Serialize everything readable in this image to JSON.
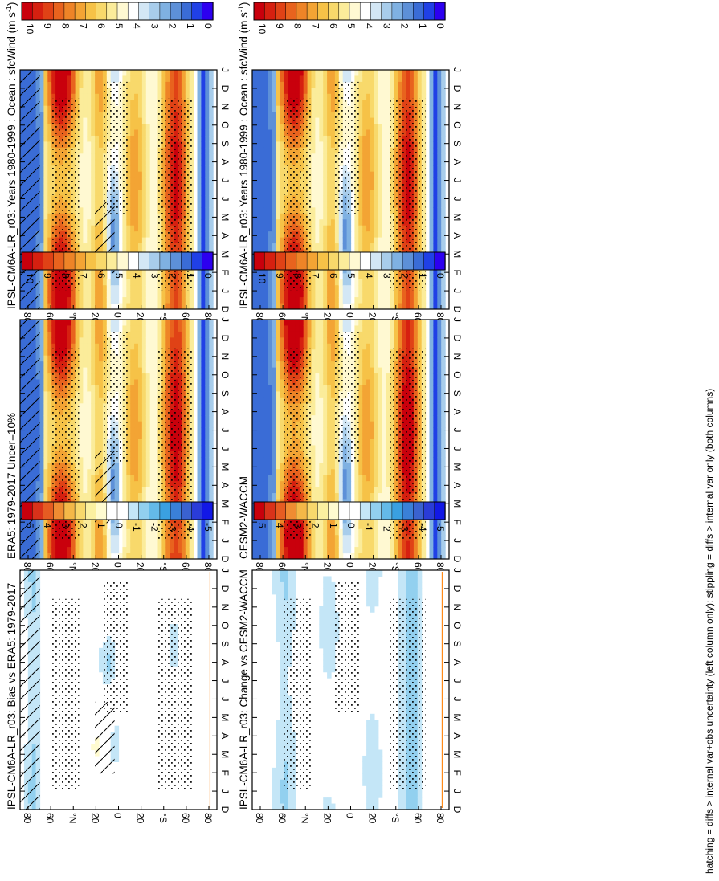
{
  "figure_caption": "hatching = diffs > internal var+obs uncertainty (left column only); stippling = diffs > internal var only (both columns)",
  "colors": {
    "abs_scale": [
      "#2d00f0",
      "#2040e6",
      "#3a6cd6",
      "#5d90d8",
      "#7fb1e2",
      "#a8cdeb",
      "#d3e7f5",
      "#ffffff",
      "#fff9d2",
      "#fbec9a",
      "#f8d96b",
      "#f6c247",
      "#f3a434",
      "#ee8427",
      "#e8631e",
      "#e04216",
      "#d62010",
      "#c9000c"
    ],
    "diff_scale": [
      "#1218e6",
      "#2a3cd8",
      "#3a62d0",
      "#3a80d8",
      "#3aa0e0",
      "#64bae8",
      "#92d0ef",
      "#c4e6f7",
      "#ffffff",
      "#ffffff",
      "#fffbd0",
      "#fbf0a0",
      "#f8d86c",
      "#f4b848",
      "#ef8c32",
      "#e65c22",
      "#d9321a",
      "#c9000c"
    ],
    "stipple": "#000000",
    "obs_line_blue": "#66b2ff",
    "obs_line_orange": "#ff8c1a"
  },
  "chart_data": [
    {
      "type": "heatmap",
      "title": "IPSL-CM6A-LR_r03: Years 1980-1999 : Ocean : sfcWind (m s",
      "title_unit_sup": "-1",
      "title_close": ")",
      "column": "left",
      "row": "top",
      "x_ticks": [
        "D",
        "J",
        "F",
        "M",
        "A",
        "M",
        "J",
        "J",
        "A",
        "S",
        "O",
        "N",
        "D",
        "J"
      ],
      "y_ticks": [
        "80",
        "60",
        "°N",
        "20",
        "0",
        "20",
        "°S",
        "60",
        "80"
      ],
      "ylim": [
        -90,
        90
      ],
      "colorbar_labels": [
        "10",
        "9",
        "8",
        "7",
        "6",
        "5",
        "4",
        "3",
        "2",
        "1",
        "0"
      ],
      "colorbar_range": [
        0,
        10
      ],
      "hatching": true,
      "stippling": true
    },
    {
      "type": "heatmap",
      "title": "IPSL-CM6A-LR_r03: Years 1980-1999 : Ocean : sfcWind (m s",
      "title_unit_sup": "-1",
      "title_close": ")",
      "column": "right",
      "row": "top",
      "x_ticks": [
        "D",
        "J",
        "F",
        "M",
        "A",
        "M",
        "J",
        "J",
        "A",
        "S",
        "O",
        "N",
        "D",
        "J"
      ],
      "y_ticks": [
        "80",
        "60",
        "°N",
        "20",
        "0",
        "20",
        "°S",
        "60",
        "80"
      ],
      "ylim": [
        -90,
        90
      ],
      "colorbar_labels": [
        "10",
        "9",
        "8",
        "7",
        "6",
        "5",
        "4",
        "3",
        "2",
        "1",
        "0"
      ],
      "colorbar_range": [
        0,
        10
      ],
      "hatching": false,
      "stippling": true
    },
    {
      "type": "heatmap",
      "title": "ERA5: 1979-2017 Uncer=10%",
      "column": "left",
      "row": "middle",
      "x_ticks": [
        "D",
        "J",
        "F",
        "M",
        "A",
        "M",
        "J",
        "J",
        "A",
        "S",
        "O",
        "N",
        "D",
        "J"
      ],
      "y_ticks": [
        "80",
        "60",
        "°N",
        "20",
        "0",
        "20",
        "°S",
        "60",
        "80"
      ],
      "ylim": [
        -90,
        90
      ],
      "colorbar_labels": [
        "10",
        "9",
        "8",
        "7",
        "6",
        "5",
        "4",
        "3",
        "2",
        "1",
        "0"
      ],
      "colorbar_range": [
        0,
        10
      ],
      "hatching": true,
      "stippling": true
    },
    {
      "type": "heatmap",
      "title": "CESM2-WACCM",
      "column": "right",
      "row": "middle",
      "x_ticks": [
        "D",
        "J",
        "F",
        "M",
        "A",
        "M",
        "J",
        "J",
        "A",
        "S",
        "O",
        "N",
        "D",
        "J"
      ],
      "y_ticks": [
        "80",
        "60",
        "°N",
        "20",
        "0",
        "20",
        "°S",
        "60",
        "80"
      ],
      "ylim": [
        -90,
        90
      ],
      "colorbar_labels": [
        "10",
        "9",
        "8",
        "7",
        "6",
        "5",
        "4",
        "3",
        "2",
        "1",
        "0"
      ],
      "colorbar_range": [
        0,
        10
      ],
      "hatching": false,
      "stippling": true
    },
    {
      "type": "heatmap",
      "title": "IPSL-CM6A-LR_r03: Bias vs ERA5: 1979-2017",
      "column": "left",
      "row": "bottom",
      "x_ticks": [
        "D",
        "J",
        "F",
        "M",
        "A",
        "M",
        "J",
        "J",
        "A",
        "S",
        "O",
        "N",
        "D",
        "J"
      ],
      "y_ticks": [
        "80",
        "60",
        "°N",
        "20",
        "0",
        "20",
        "°S",
        "60",
        "80"
      ],
      "ylim": [
        -90,
        90
      ],
      "colorbar_labels": [
        "5",
        "4",
        "3",
        "2",
        "1",
        "0",
        "-1",
        "-2",
        "-3",
        "-4",
        "-5"
      ],
      "colorbar_range": [
        -5,
        5
      ],
      "hatching": true,
      "stippling": true
    },
    {
      "type": "heatmap",
      "title": "IPSL-CM6A-LR_r03: Change vs CESM2-WACCM",
      "column": "right",
      "row": "bottom",
      "x_ticks": [
        "D",
        "J",
        "F",
        "M",
        "A",
        "M",
        "J",
        "J",
        "A",
        "S",
        "O",
        "N",
        "D",
        "J"
      ],
      "y_ticks": [
        "80",
        "60",
        "°N",
        "20",
        "0",
        "20",
        "°S",
        "60",
        "80"
      ],
      "ylim": [
        -90,
        90
      ],
      "colorbar_labels": [
        "5",
        "4",
        "3",
        "2",
        "1",
        "0",
        "-1",
        "-2",
        "-3",
        "-4",
        "-5"
      ],
      "colorbar_range": [
        -5,
        5
      ],
      "hatching": false,
      "stippling": true
    }
  ]
}
